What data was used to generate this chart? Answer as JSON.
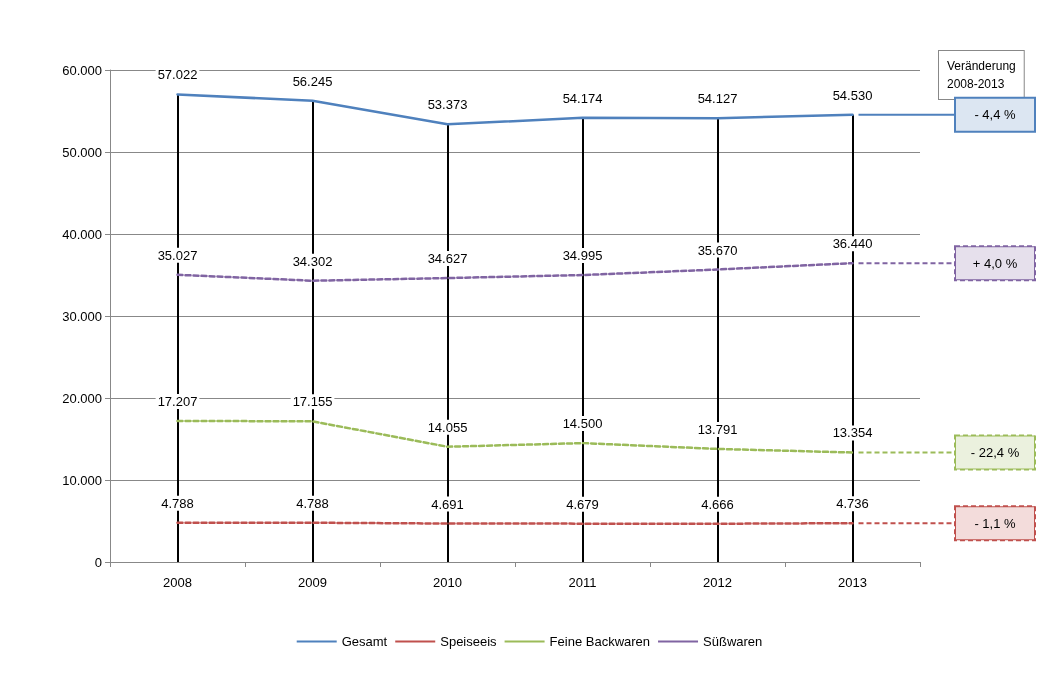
{
  "chart_data": {
    "type": "line",
    "categories": [
      "2008",
      "2009",
      "2010",
      "2011",
      "2012",
      "2013"
    ],
    "series": [
      {
        "name": "Gesamt",
        "color": "#4f81bd",
        "line_style": "solid",
        "values": [
          57022,
          56245,
          53373,
          54174,
          54127,
          54530
        ],
        "value_labels": [
          "57.022",
          "56.245",
          "53.373",
          "54.174",
          "54.127",
          "54.530"
        ]
      },
      {
        "name": "Speiseeis",
        "color": "#c0504d",
        "line_style": "dashed",
        "values": [
          4788,
          4788,
          4691,
          4679,
          4666,
          4736
        ],
        "value_labels": [
          "4.788",
          "4.788",
          "4.691",
          "4.679",
          "4.666",
          "4.736"
        ]
      },
      {
        "name": "Feine Backwaren",
        "color": "#9bbb59",
        "line_style": "dashed",
        "values": [
          17207,
          17155,
          14055,
          14500,
          13791,
          13354
        ],
        "value_labels": [
          "17.207",
          "17.155",
          "14.055",
          "14.500",
          "13.791",
          "13.354"
        ]
      },
      {
        "name": "Süßwaren",
        "color": "#8064a2",
        "line_style": "dashed",
        "values": [
          35027,
          34302,
          34627,
          34995,
          35670,
          36440
        ],
        "value_labels": [
          "35.027",
          "34.302",
          "34.627",
          "34.995",
          "35.670",
          "36.440"
        ]
      }
    ],
    "ylim": [
      0,
      60000
    ],
    "yticks": [
      {
        "value": 0,
        "label": "0"
      },
      {
        "value": 10000,
        "label": "10.000"
      },
      {
        "value": 20000,
        "label": "20.000"
      },
      {
        "value": 30000,
        "label": "30.000"
      },
      {
        "value": 40000,
        "label": "40.000"
      },
      {
        "value": 50000,
        "label": "50.000"
      },
      {
        "value": 60000,
        "label": "60.000"
      }
    ],
    "grid": "y",
    "legend": "bottom",
    "marker": "none",
    "ref_lines": [
      {
        "axis": "x",
        "value": "2008",
        "color": "#000000"
      },
      {
        "axis": "x",
        "value": "2009",
        "color": "#000000"
      },
      {
        "axis": "x",
        "value": "2010",
        "color": "#000000"
      },
      {
        "axis": "x",
        "value": "2011",
        "color": "#000000"
      },
      {
        "axis": "x",
        "value": "2012",
        "color": "#000000"
      },
      {
        "axis": "x",
        "value": "2013",
        "color": "#000000"
      }
    ],
    "annotations": [
      "Veränderung 2008-2013",
      "- 4,4 %",
      "+ 4,0 %",
      "- 22,4 %",
      "- 1,1 %"
    ]
  }
}
